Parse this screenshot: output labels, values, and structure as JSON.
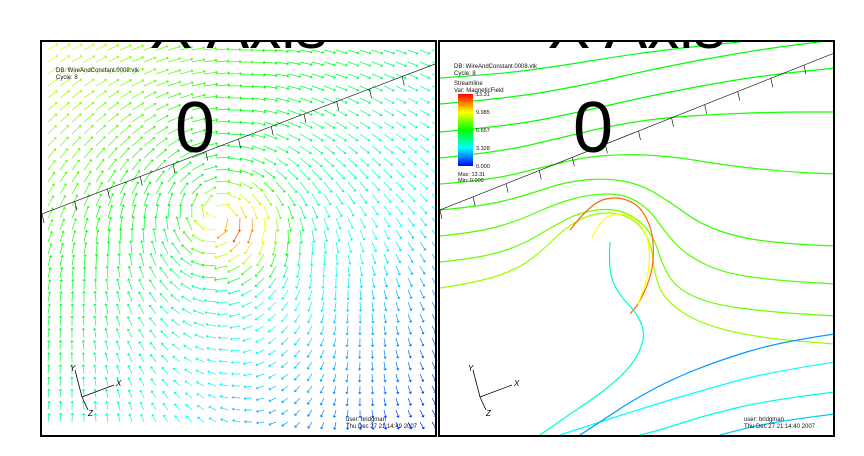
{
  "left_view": {
    "title": "X Axis",
    "axis_value": "0",
    "db_line": "DB: WireAndConstant.0008.vtk",
    "cycle_line": "Cycle: 8",
    "user_line": "user: bridgman",
    "date_line": "Thu Dec 27 21:14:49 2007",
    "triad": {
      "x": "X",
      "y": "Y",
      "z": "Z"
    }
  },
  "right_view": {
    "title": "X Axis",
    "axis_value": "0",
    "db_line": "DB: WireAndConstant.0008.vtk",
    "cycle_line": "Cycle: 8",
    "plot_line": "Streamline",
    "var_line": "Var: MagneticField",
    "legend_ticks": [
      "13.31",
      "9.985",
      "6.657",
      "3.328",
      "0.000"
    ],
    "max_line": "Max: 13.31",
    "min_line": "Min: 0.000",
    "user_line": "user: bridgman",
    "date_line": "Thu Dec 27 21:14:40 2007",
    "triad": {
      "x": "X",
      "y": "Y",
      "z": "Z"
    }
  },
  "colors": {
    "high": "#ff0000",
    "mid_high": "#ffff00",
    "mid": "#00ff00",
    "mid_low": "#00ffff",
    "low": "#0000ff"
  }
}
